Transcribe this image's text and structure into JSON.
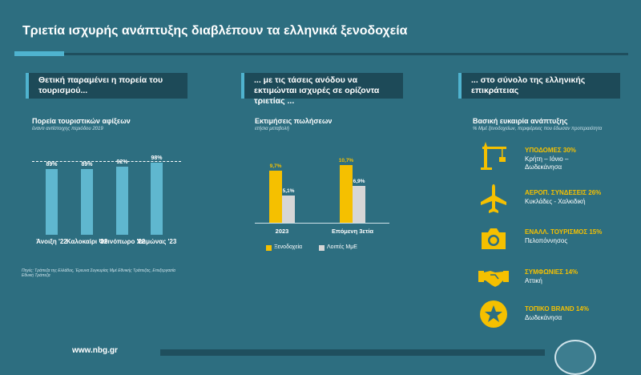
{
  "title": "Τριετία ισχυρής ανάπτυξης διαβλέπουν τα ελληνικά ξενοδοχεία",
  "banners": [
    "Θετική παραμένει η πορεία του τουρισμού...",
    "... με τις τάσεις ανόδου να εκτιμώνται ισχυρές σε ορίζοντα τριετίας ...",
    "... στο σύνολο της ελληνικής επικράτειας"
  ],
  "panel1": {
    "heading": "Πορεία τουριστικών αφίξεων",
    "note": "έναντι αντίστοιχης περιόδου 2019",
    "source": "Πηγές: Τράπεζα της Ελλάδος, Έρευνα Συγκυρίας Μμέ Εθνικής Τράπεζας, Επεξεργασία Εθνική Τράπεζα"
  },
  "panel2": {
    "heading": "Εκτιμήσεις πωλήσεων",
    "note": "ετήσια μεταβολή"
  },
  "panel3": {
    "heading": "Βασική ευκαιρία ανάπτυξης",
    "note": "% Μμέ ξενοδοχείων, περιφέρειες που έδωσαν προτεραιότητα",
    "items": [
      {
        "icon": "crane-icon",
        "title": "ΥΠΟΔΟΜΕΣ 30%",
        "regions": "Κρήτη – Ιόνιο –\nΔωδεκάνησα"
      },
      {
        "icon": "airplane-icon",
        "title": "ΑΕΡΟΠ. ΣΥΝΔΕΣΕΙΣ 26%",
        "regions": "Κυκλάδες - Χαλκιδική"
      },
      {
        "icon": "camera-icon",
        "title": "ΕΝΑΛΛ. ΤΟΥΡΙΣΜΟΣ 15%",
        "regions": "Πελοπόννησος"
      },
      {
        "icon": "handshake-icon",
        "title": "ΣΥΜΦΩΝΙΕΣ 14%",
        "regions": "Αττική"
      },
      {
        "icon": "star-badge-icon",
        "title": "ΤΟΠΙΚΟ BRAND 14%",
        "regions": "Δωδεκάνησα"
      }
    ]
  },
  "footer": {
    "url": "www.nbg.gr"
  },
  "colors": {
    "background": "#2d6e80",
    "accent": "#4fb3cf",
    "yellow": "#f5c000",
    "grey": "#d6d6d6"
  },
  "chart_data": [
    {
      "type": "bar",
      "title": "Πορεία τουριστικών αφίξεων",
      "categories": [
        "Άνοιξη '22",
        "Καλοκαίρι '22",
        "Φθινόπωρο '22",
        "Χειμώνας '23"
      ],
      "values": [
        89,
        89,
        92,
        98
      ],
      "value_labels": [
        "89%",
        "89%",
        "92%",
        "98%"
      ],
      "reference_line": 100
    },
    {
      "type": "bar",
      "title": "Εκτιμήσεις πωλήσεων",
      "categories": [
        "2023",
        "Επόμενη 3ετία"
      ],
      "series": [
        {
          "name": "Ξενοδοχεία",
          "values": [
            9.7,
            10.7
          ],
          "labels": [
            "9,7%",
            "10,7%"
          ]
        },
        {
          "name": "Λοιπές ΜμΕ",
          "values": [
            5.1,
            6.9
          ],
          "labels": [
            "5,1%",
            "6,9%"
          ]
        }
      ]
    }
  ]
}
